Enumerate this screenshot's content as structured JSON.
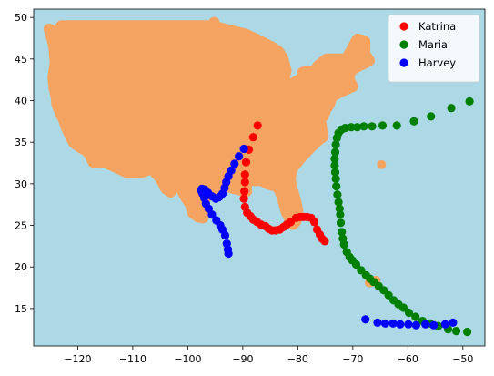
{
  "chart_data": {
    "type": "scatter",
    "background_color": "#add8e6",
    "landmass": {
      "region": "contiguous-united-states",
      "color": "#f4a460"
    },
    "xlim": [
      -128,
      -46
    ],
    "ylim": [
      10.5,
      51
    ],
    "xticks": [
      -120,
      -110,
      -100,
      -90,
      -80,
      -70,
      -60,
      -50
    ],
    "yticks": [
      15,
      20,
      25,
      30,
      35,
      40,
      45,
      50
    ],
    "legend_position": "top-right",
    "series": [
      {
        "name": "Katrina",
        "color": "#ff0000",
        "points": [
          [
            -75.1,
            23.1
          ],
          [
            -75.6,
            23.4
          ],
          [
            -76.0,
            23.9
          ],
          [
            -76.5,
            24.5
          ],
          [
            -77.0,
            25.4
          ],
          [
            -77.6,
            25.9
          ],
          [
            -78.3,
            26.0
          ],
          [
            -79.0,
            26.0
          ],
          [
            -79.6,
            26.0
          ],
          [
            -80.3,
            25.9
          ],
          [
            -81.3,
            25.4
          ],
          [
            -82.0,
            25.1
          ],
          [
            -82.6,
            24.8
          ],
          [
            -83.3,
            24.5
          ],
          [
            -84.0,
            24.4
          ],
          [
            -84.7,
            24.4
          ],
          [
            -85.3,
            24.6
          ],
          [
            -85.9,
            24.9
          ],
          [
            -86.7,
            25.1
          ],
          [
            -87.4,
            25.4
          ],
          [
            -88.1,
            25.7
          ],
          [
            -88.6,
            26.1
          ],
          [
            -89.2,
            26.5
          ],
          [
            -89.6,
            27.2
          ],
          [
            -89.8,
            28.2
          ],
          [
            -89.7,
            29.1
          ],
          [
            -89.6,
            30.2
          ],
          [
            -89.6,
            31.1
          ],
          [
            -89.4,
            32.6
          ],
          [
            -88.9,
            34.1
          ],
          [
            -88.1,
            35.6
          ],
          [
            -87.3,
            37.0
          ]
        ]
      },
      {
        "name": "Maria",
        "color": "#008000",
        "points": [
          [
            -49.2,
            12.2
          ],
          [
            -51.2,
            12.3
          ],
          [
            -52.7,
            12.5
          ],
          [
            -54.5,
            12.9
          ],
          [
            -56.0,
            13.2
          ],
          [
            -57.3,
            13.5
          ],
          [
            -58.6,
            14.0
          ],
          [
            -59.8,
            14.5
          ],
          [
            -60.8,
            15.1
          ],
          [
            -61.7,
            15.5
          ],
          [
            -62.6,
            16.0
          ],
          [
            -63.5,
            16.6
          ],
          [
            -64.4,
            17.2
          ],
          [
            -65.3,
            17.7
          ],
          [
            -66.2,
            18.2
          ],
          [
            -66.9,
            18.6
          ],
          [
            -67.6,
            19.0
          ],
          [
            -68.5,
            19.6
          ],
          [
            -69.4,
            20.3
          ],
          [
            -70.1,
            20.8
          ],
          [
            -70.6,
            21.2
          ],
          [
            -71.1,
            21.8
          ],
          [
            -71.6,
            22.7
          ],
          [
            -71.8,
            23.4
          ],
          [
            -72.0,
            24.2
          ],
          [
            -72.2,
            25.3
          ],
          [
            -72.3,
            26.3
          ],
          [
            -72.4,
            27.0
          ],
          [
            -72.6,
            27.8
          ],
          [
            -72.8,
            28.7
          ],
          [
            -73.0,
            29.7
          ],
          [
            -73.1,
            30.6
          ],
          [
            -73.2,
            31.4
          ],
          [
            -73.3,
            32.2
          ],
          [
            -73.3,
            33.0
          ],
          [
            -73.2,
            33.8
          ],
          [
            -73.1,
            34.7
          ],
          [
            -72.9,
            35.5
          ],
          [
            -72.6,
            36.1
          ],
          [
            -72.1,
            36.5
          ],
          [
            -71.4,
            36.7
          ],
          [
            -70.3,
            36.8
          ],
          [
            -69.2,
            36.8
          ],
          [
            -68.0,
            36.9
          ],
          [
            -66.5,
            36.9
          ],
          [
            -64.6,
            37.0
          ],
          [
            -62.0,
            37.0
          ],
          [
            -58.9,
            37.5
          ],
          [
            -55.8,
            38.1
          ],
          [
            -52.1,
            39.1
          ],
          [
            -48.8,
            39.9
          ]
        ]
      },
      {
        "name": "Harvey",
        "color": "#0000ff",
        "points": [
          [
            -51.8,
            13.3
          ],
          [
            -53.2,
            13.1
          ],
          [
            -55.3,
            13.0
          ],
          [
            -56.8,
            13.1
          ],
          [
            -58.5,
            13.0
          ],
          [
            -59.9,
            13.1
          ],
          [
            -61.4,
            13.1
          ],
          [
            -62.7,
            13.2
          ],
          [
            -64.1,
            13.2
          ],
          [
            -65.5,
            13.3
          ],
          [
            -67.7,
            13.7
          ],
          [
            -92.6,
            21.6
          ],
          [
            -92.7,
            22.1
          ],
          [
            -92.9,
            22.8
          ],
          [
            -93.2,
            23.8
          ],
          [
            -93.7,
            24.5
          ],
          [
            -94.1,
            25.0
          ],
          [
            -94.8,
            25.6
          ],
          [
            -95.6,
            26.3
          ],
          [
            -96.2,
            27.0
          ],
          [
            -96.7,
            27.6
          ],
          [
            -97.0,
            28.3
          ],
          [
            -97.3,
            28.8
          ],
          [
            -97.6,
            29.2
          ],
          [
            -97.4,
            29.4
          ],
          [
            -96.9,
            29.3
          ],
          [
            -96.3,
            28.9
          ],
          [
            -95.6,
            28.5
          ],
          [
            -94.9,
            28.2
          ],
          [
            -94.3,
            28.4
          ],
          [
            -93.7,
            28.8
          ],
          [
            -93.3,
            29.5
          ],
          [
            -93.0,
            30.2
          ],
          [
            -92.6,
            30.9
          ],
          [
            -92.1,
            31.6
          ],
          [
            -91.5,
            32.4
          ],
          [
            -90.7,
            33.3
          ],
          [
            -89.8,
            34.2
          ]
        ]
      }
    ]
  }
}
